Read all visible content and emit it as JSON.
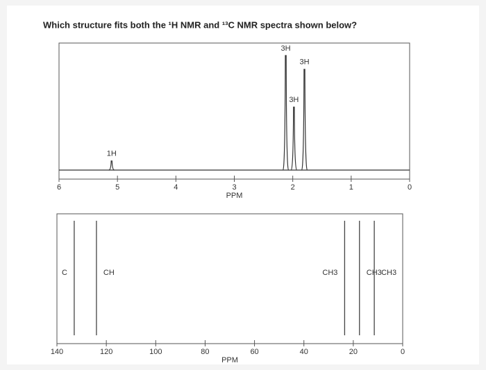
{
  "question": "Which structure fits both the ¹H NMR and ¹³C NMR spectra shown below?",
  "chart_data": [
    {
      "type": "spectrum",
      "x_label": "PPM",
      "xlim": [
        6,
        0
      ],
      "xticks": [
        6,
        5,
        4,
        3,
        2,
        1,
        0
      ],
      "ylim": [
        0,
        100
      ],
      "x": [
        5.1,
        2.12,
        1.98,
        1.8
      ],
      "values": [
        8,
        100,
        55,
        88
      ],
      "labels": [
        "1H",
        "3H",
        "3H",
        "3H"
      ]
    },
    {
      "type": "spectrum",
      "x_label": "PPM",
      "xlim": [
        140,
        0
      ],
      "xticks": [
        140,
        120,
        100,
        80,
        60,
        40,
        20,
        0
      ],
      "ylim": [
        0,
        100
      ],
      "x": [
        133,
        124,
        23.5,
        17.5,
        11.5
      ],
      "values": [
        100,
        100,
        100,
        100,
        100
      ],
      "labels": [
        "C",
        "CH",
        "CH3",
        "CH3",
        "CH3"
      ]
    }
  ]
}
